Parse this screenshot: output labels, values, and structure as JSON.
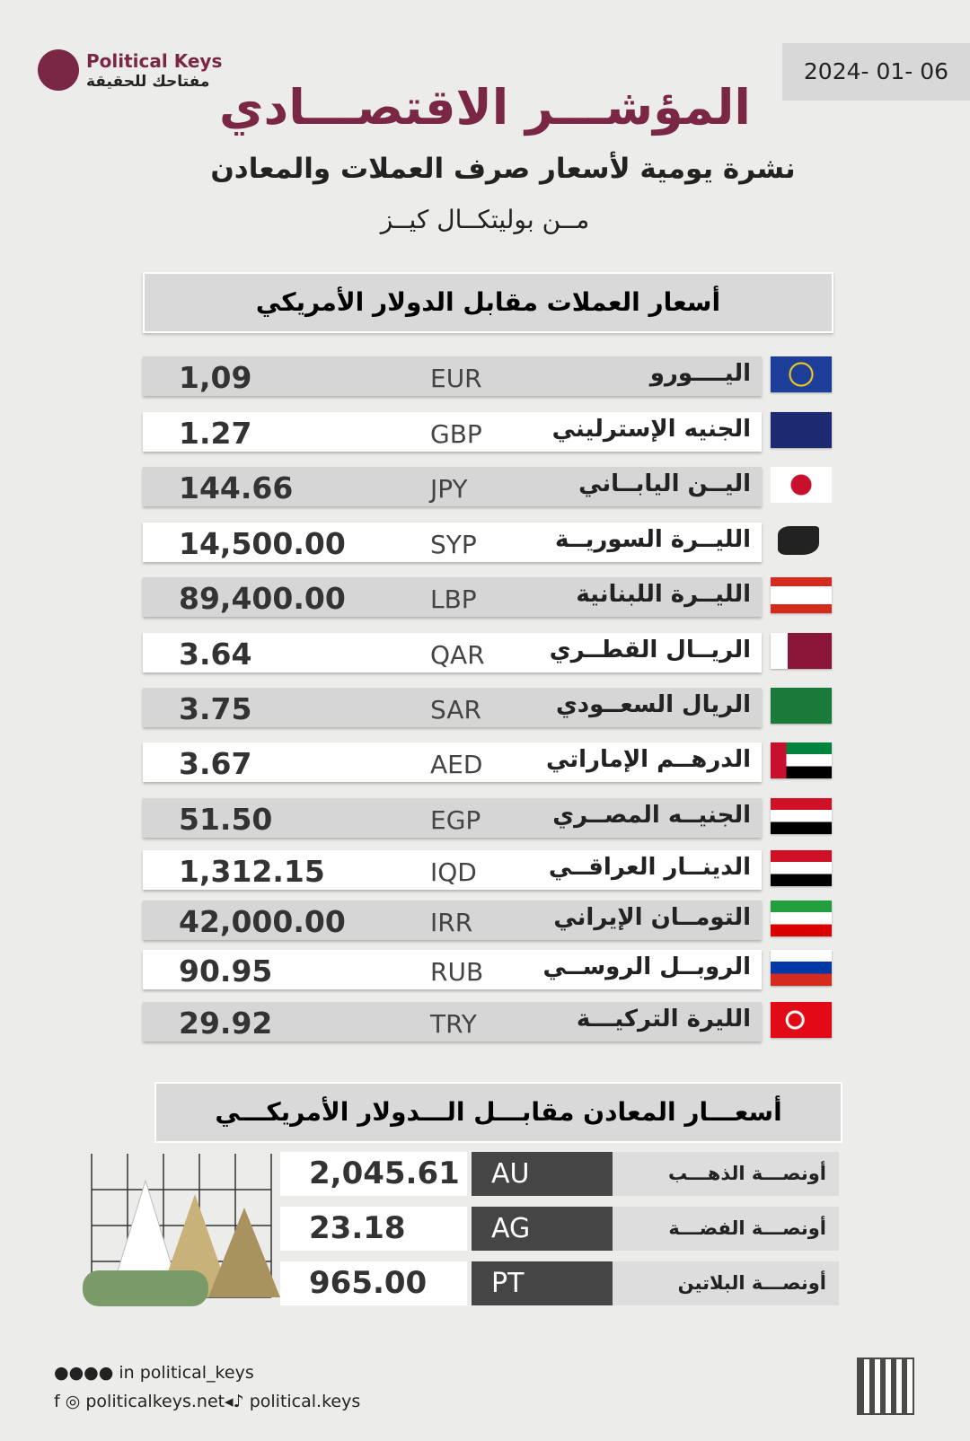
{
  "header": {
    "brand": "Political Keys",
    "brand_tagline": "مفتاحك للحقيقة",
    "date": "2024- 01- 06",
    "title": "المؤشـــر الاقتصـــادي",
    "subtitle": "نشرة يومية لأسعار صرف العملات والمعادن",
    "byline": "مــن بوليتكــال كيــز"
  },
  "currencies": {
    "heading": "أسعار العملات مقابل الدولار الأمريكي",
    "rows": [
      {
        "name": "اليــــورو",
        "code": "EUR",
        "value": "1,09"
      },
      {
        "name": "الجنيه الإسترليني",
        "code": "GBP",
        "value": "1.27"
      },
      {
        "name": "اليــن اليابــاني",
        "code": "JPY",
        "value": "144.66"
      },
      {
        "name": "الليــرة السوريــة",
        "code": "SYP",
        "value": "14,500.00"
      },
      {
        "name": "الليــرة اللبنانية",
        "code": "LBP",
        "value": "89,400.00"
      },
      {
        "name": "الريــال القطــري",
        "code": "QAR",
        "value": "3.64"
      },
      {
        "name": "الريال السعــودي",
        "code": "SAR",
        "value": "3.75"
      },
      {
        "name": "الدرهــم الإماراتي",
        "code": "AED",
        "value": "3.67"
      },
      {
        "name": "الجنيــه المصــري",
        "code": "EGP",
        "value": "51.50"
      },
      {
        "name": "الدينــار العراقــي",
        "code": "IQD",
        "value": "1,312.15"
      },
      {
        "name": "التومــان الإيراني",
        "code": "IRR",
        "value": "42,000.00"
      },
      {
        "name": "الروبــل الروســي",
        "code": "RUB",
        "value": "90.95"
      },
      {
        "name": "الليرة التركيـــة",
        "code": "TRY",
        "value": "29.92"
      }
    ]
  },
  "metals": {
    "heading": "أسعـــار المعادن مقابـــل الـــدولار الأمريكـــي",
    "rows": [
      {
        "name": "أونصـــة الذهـــب",
        "code": "AU",
        "value": "2,045.61"
      },
      {
        "name": "أونصـــة الفضـــة",
        "code": "AG",
        "value": "23.18"
      },
      {
        "name": "أونصـــة البلاتين",
        "code": "PT",
        "value": "965.00"
      }
    ]
  },
  "footer": {
    "social_handle": "political_keys",
    "website": "politicalkeys.net",
    "telegram": "political.keys"
  }
}
